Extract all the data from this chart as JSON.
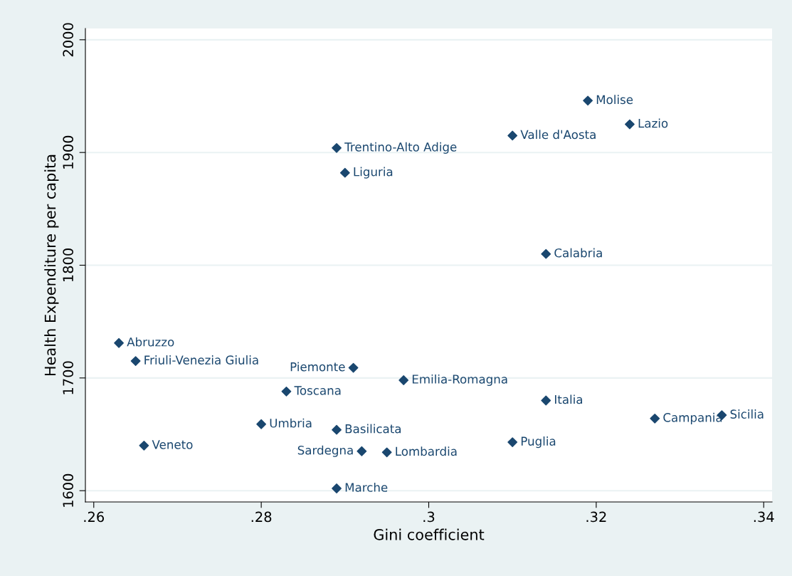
{
  "chart_data": {
    "type": "scatter",
    "xlabel": "Gini coefficient",
    "ylabel": "Health Expenditure per capita",
    "x": [
      0.319,
      0.324,
      0.31,
      0.289,
      0.29,
      0.314,
      0.263,
      0.265,
      0.291,
      0.297,
      0.283,
      0.314,
      0.335,
      0.327,
      0.28,
      0.289,
      0.266,
      0.31,
      0.292,
      0.295,
      0.289
    ],
    "series": [
      {
        "color": "#1a476f",
        "values": [
          1946,
          1925,
          1915,
          1904,
          1882,
          1810,
          1731,
          1715,
          1709,
          1698,
          1688,
          1680,
          1667,
          1664,
          1659,
          1654,
          1640,
          1643,
          1635,
          1634,
          1602
        ]
      }
    ],
    "marker": "diamond",
    "grid": "y",
    "xlim": [
      0.259,
      0.341
    ],
    "xticks": [
      {
        "value": 0.26,
        "label": ".26"
      },
      {
        "value": 0.28,
        "label": ".28"
      },
      {
        "value": 0.3,
        "label": ".3"
      },
      {
        "value": 0.32,
        "label": ".32"
      },
      {
        "value": 0.34,
        "label": ".34"
      }
    ],
    "ylim": [
      1590,
      2010
    ],
    "yticks": [
      1600,
      1700,
      1800,
      1900,
      2000
    ],
    "annotations": [
      {
        "text": "Molise",
        "x": 0.319,
        "y": 1946
      },
      {
        "text": "Lazio",
        "x": 0.324,
        "y": 1925
      },
      {
        "text": "Valle d'Aosta",
        "x": 0.31,
        "y": 1915
      },
      {
        "text": "Trentino-Alto Adige",
        "x": 0.289,
        "y": 1904
      },
      {
        "text": "Liguria",
        "x": 0.29,
        "y": 1882
      },
      {
        "text": "Calabria",
        "x": 0.314,
        "y": 1810
      },
      {
        "text": "Abruzzo",
        "x": 0.263,
        "y": 1731
      },
      {
        "text": "Friuli-Venezia Giulia",
        "x": 0.265,
        "y": 1715
      },
      {
        "text": "Piemonte",
        "x": 0.291,
        "y": 1709
      },
      {
        "text": "Emilia-Romagna",
        "x": 0.297,
        "y": 1698
      },
      {
        "text": "Toscana",
        "x": 0.283,
        "y": 1688
      },
      {
        "text": "Italia",
        "x": 0.314,
        "y": 1680
      },
      {
        "text": "Sicilia",
        "x": 0.335,
        "y": 1667
      },
      {
        "text": "Campania",
        "x": 0.327,
        "y": 1664
      },
      {
        "text": "Umbria",
        "x": 0.28,
        "y": 1659
      },
      {
        "text": "Basilicata",
        "x": 0.289,
        "y": 1654
      },
      {
        "text": "Veneto",
        "x": 0.266,
        "y": 1640
      },
      {
        "text": "Puglia",
        "x": 0.31,
        "y": 1643
      },
      {
        "text": "Sardegna",
        "x": 0.292,
        "y": 1635
      },
      {
        "text": "Lombardia",
        "x": 0.295,
        "y": 1634
      },
      {
        "text": "Marche",
        "x": 0.289,
        "y": 1602
      }
    ]
  }
}
